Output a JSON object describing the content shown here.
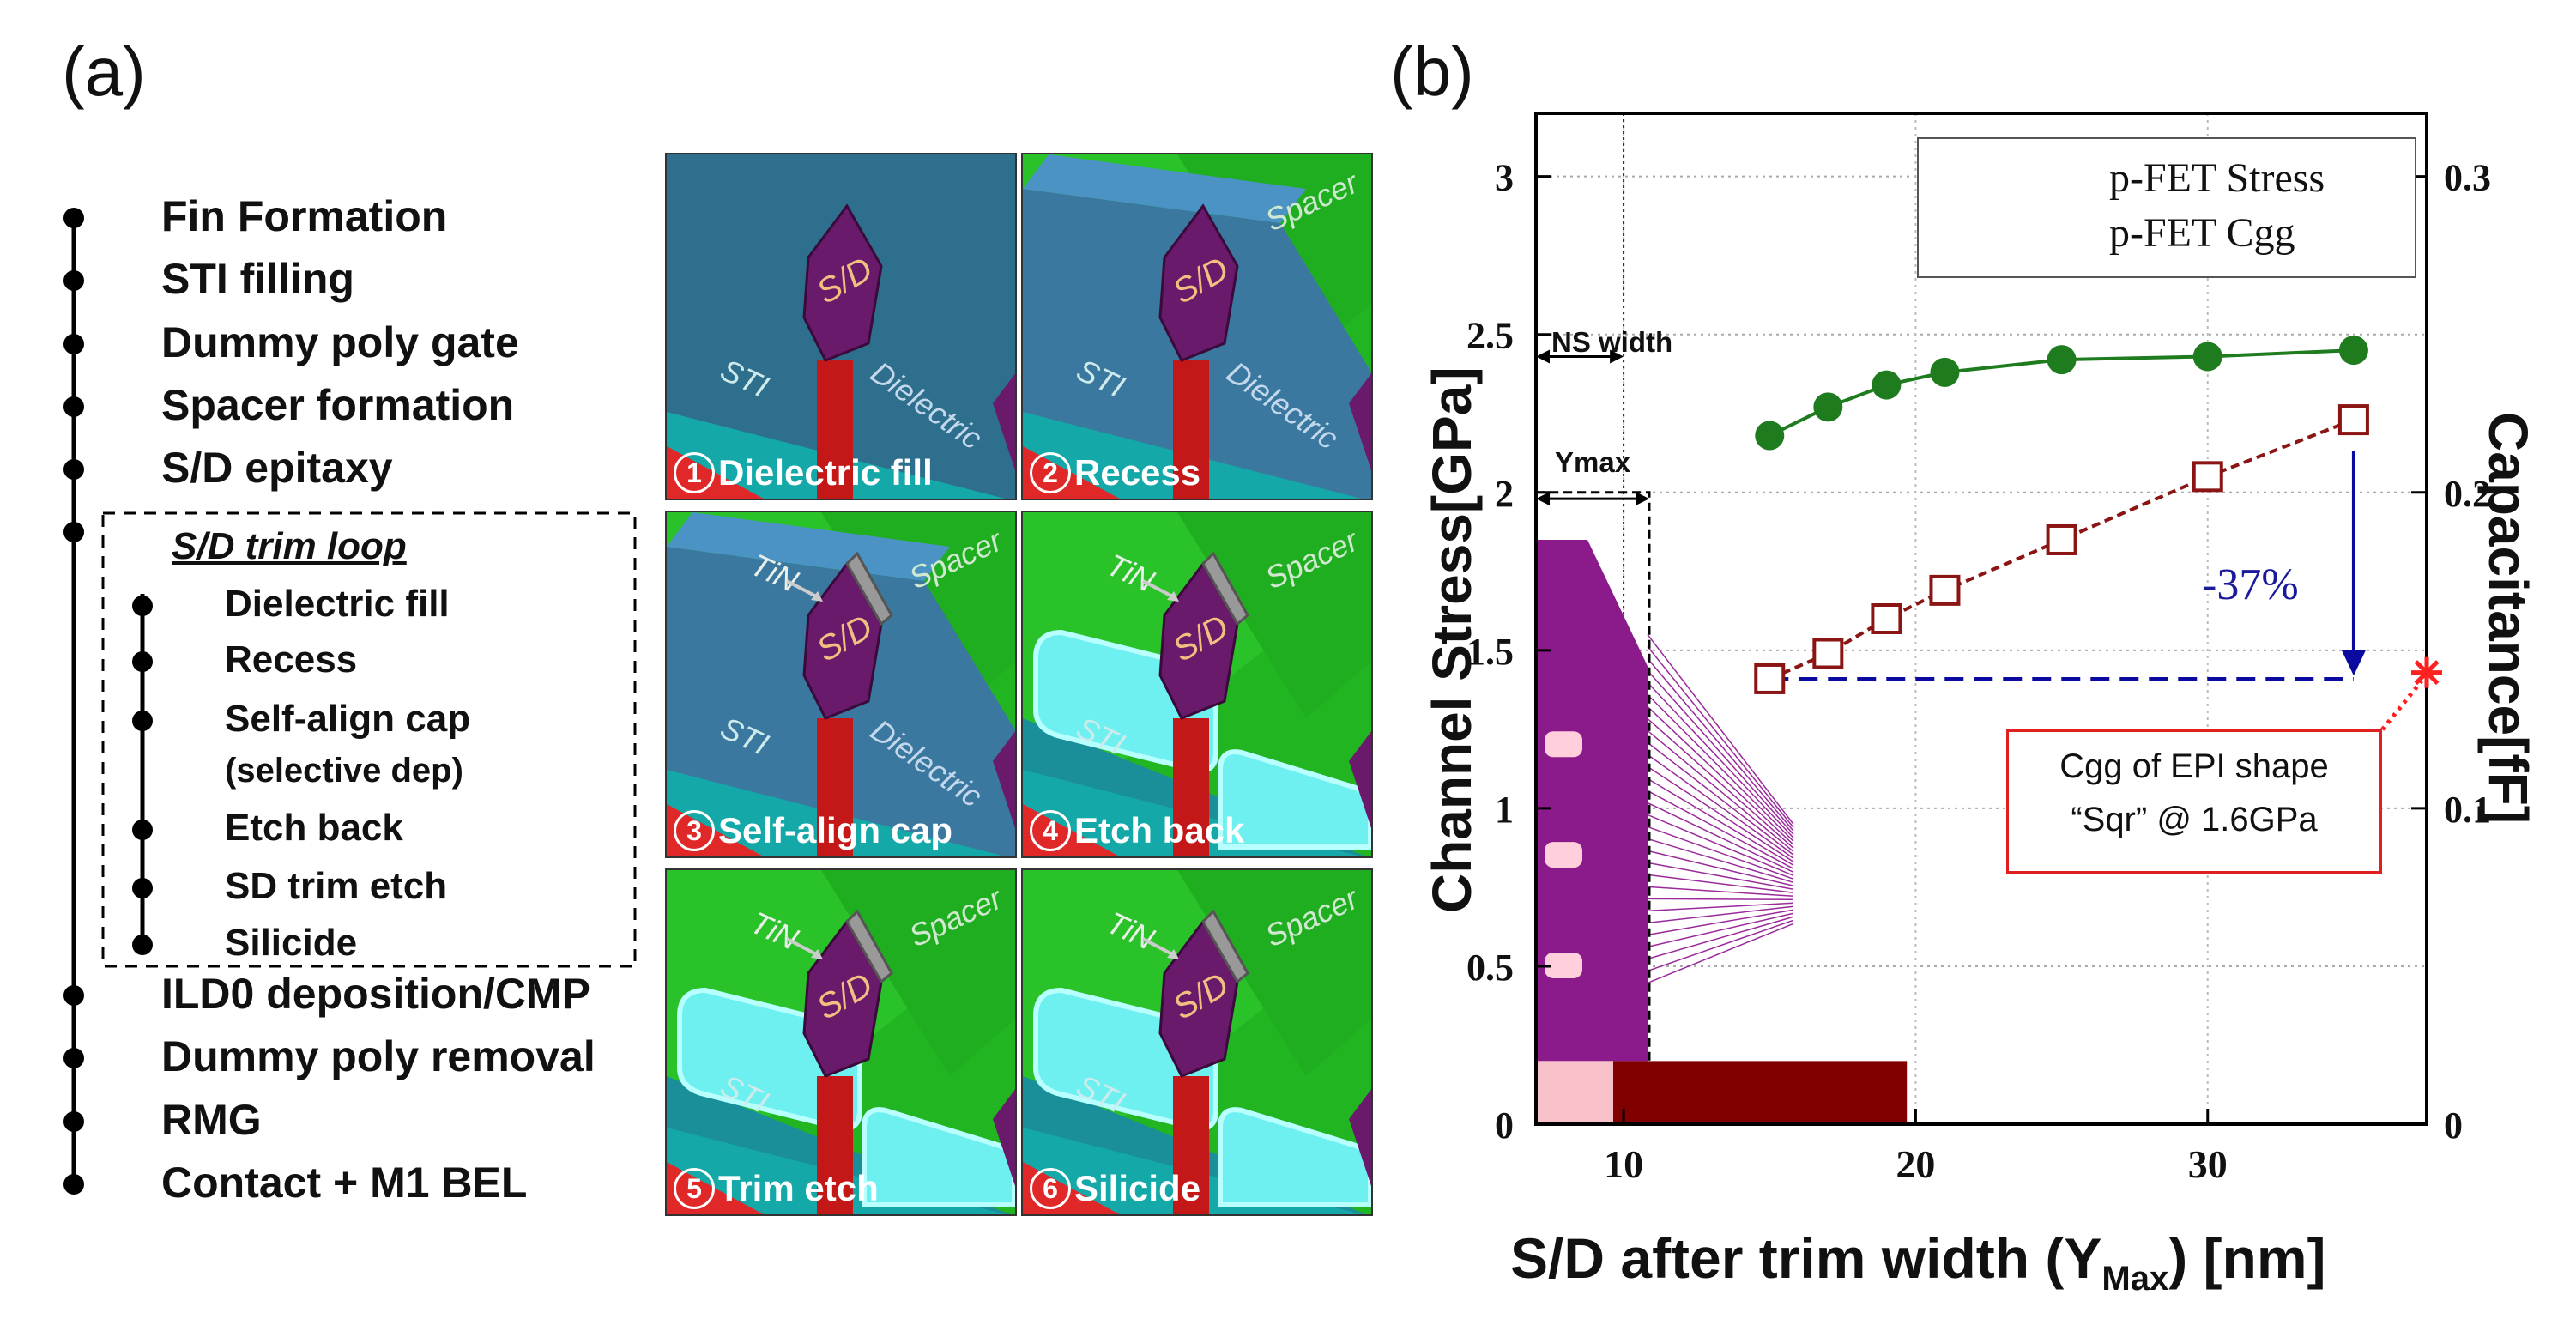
{
  "panel_a": {
    "label": "(a)",
    "flow_steps": [
      "Fin Formation",
      "STI filling",
      "Dummy poly gate",
      "Spacer formation",
      "S/D epitaxy"
    ],
    "trim_loop_title": "S/D trim loop",
    "trim_loop_steps": [
      "Dielectric fill",
      "Recess",
      "Self-align cap",
      "(selective dep)",
      "Etch back",
      "SD trim etch",
      "Silicide"
    ],
    "post_steps": [
      "ILD0 deposition/CMP",
      "Dummy poly removal",
      "RMG",
      "Contact + M1 BEL"
    ],
    "tiles": [
      {
        "num": "1",
        "caption": "Dielectric fill"
      },
      {
        "num": "2",
        "caption": "Recess"
      },
      {
        "num": "3",
        "caption": "Self-align cap"
      },
      {
        "num": "4",
        "caption": "Etch back"
      },
      {
        "num": "5",
        "caption": "Trim etch"
      },
      {
        "num": "6",
        "caption": "Silicide"
      }
    ],
    "tile_labels": {
      "sd": "S/D",
      "sti": "STI",
      "dielectric": "Dielectric",
      "spacer": "Spacer",
      "tin": "TiN"
    }
  },
  "chart_data": {
    "type": "line",
    "label": "(b)",
    "xlabel_main": "S/D after trim width (Y",
    "xlabel_sub": "Max",
    "xlabel_tail": ") [nm]",
    "ylabel_left": "Channel Stress[GPa]",
    "ylabel_right": "Capacitance[fF]",
    "xlim": [
      7,
      37.5
    ],
    "ylim_left": [
      0,
      3.2
    ],
    "ylim_right": [
      0,
      0.32
    ],
    "x_ticks": [
      10,
      20,
      30
    ],
    "y_left_ticks": [
      "0",
      "0.5",
      "1",
      "1.5",
      "2",
      "2.5",
      "3"
    ],
    "y_right_ticks": [
      "0",
      "0.1",
      "0.2",
      "0.3"
    ],
    "series": [
      {
        "name": "p-FET Stress",
        "axis": "left",
        "color": "#1e7b1e",
        "marker": "circle",
        "x": [
          15,
          17,
          19,
          21,
          25,
          30,
          35
        ],
        "values": [
          2.18,
          2.27,
          2.34,
          2.38,
          2.42,
          2.43,
          2.45
        ]
      },
      {
        "name": "p-FET Cgg",
        "axis": "right",
        "color": "#8b1414",
        "marker": "square-open",
        "x": [
          15,
          17,
          19,
          21,
          25,
          30,
          35
        ],
        "values": [
          0.141,
          0.149,
          0.16,
          0.169,
          0.185,
          0.205,
          0.223
        ]
      }
    ],
    "reference_line": {
      "value": 0.141,
      "axis": "right",
      "color": "#0a0aa0"
    },
    "reduction_label": "-37%",
    "star_point": {
      "x": 37.5,
      "y": 0.143,
      "color": "#ff2020"
    },
    "annotation_text_line1": "Cgg of EPI shape",
    "annotation_text_line2": "“Sqr” @ 1.6GPa",
    "ns_width_label": "NS width",
    "ymax_label": "Ymax",
    "dotted_x": 10
  }
}
